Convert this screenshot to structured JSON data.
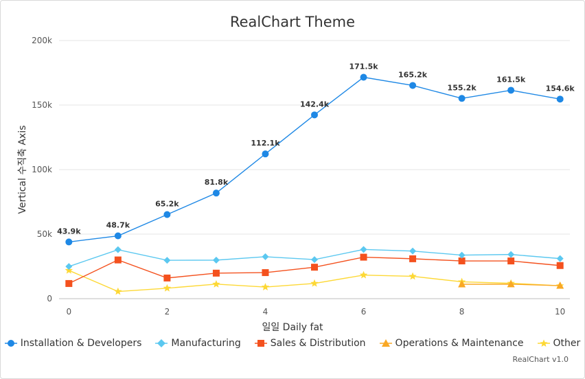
{
  "chart_data": {
    "type": "line",
    "title": "RealChart Theme",
    "xlabel": "일일 Daily fat",
    "ylabel": "Vertical 수직축 Axis",
    "x": [
      0,
      1,
      2,
      3,
      4,
      5,
      6,
      7,
      8,
      9,
      10
    ],
    "xticks": [
      "0",
      "2",
      "4",
      "6",
      "8",
      "10"
    ],
    "xlim": [
      -0.2,
      10.2
    ],
    "ylim": [
      0,
      200000
    ],
    "yticks": [
      "0",
      "50k",
      "100k",
      "150k",
      "200k"
    ],
    "grid": true,
    "legend_position": "bottom",
    "series": [
      {
        "name": "Installation & Developers",
        "color": "#1e88e5",
        "marker": "circle",
        "values": [
          43934,
          48656,
          65165,
          81827,
          112143,
          142383,
          171533,
          165174,
          155157,
          161454,
          154610
        ],
        "data_labels": [
          "43.9k",
          "48.7k",
          "65.2k",
          "81.8k",
          "112.1k",
          "142.4k",
          "171.5k",
          "165.2k",
          "155.2k",
          "161.5k",
          "154.6k"
        ]
      },
      {
        "name": "Manufacturing",
        "color": "#5bc8f0",
        "marker": "diamond",
        "values": [
          24916,
          37941,
          29742,
          29851,
          32490,
          30282,
          38121,
          36885,
          33726,
          34243,
          31050
        ]
      },
      {
        "name": "Sales & Distribution",
        "color": "#f4511e",
        "marker": "square",
        "values": [
          11744,
          30000,
          16005,
          19771,
          20185,
          24377,
          32147,
          30912,
          29243,
          29213,
          25663
        ]
      },
      {
        "name": "Operations & Maintenance",
        "color": "#f9a825",
        "marker": "triangle",
        "values": [
          null,
          null,
          null,
          null,
          null,
          null,
          null,
          null,
          11164,
          11218,
          10077
        ]
      },
      {
        "name": "Other",
        "color": "#fdd835",
        "marker": "star",
        "values": [
          21908,
          5548,
          8105,
          11248,
          8989,
          11816,
          18274,
          17300,
          13053,
          11906,
          10000
        ]
      }
    ]
  },
  "credit": "RealChart v1.0"
}
